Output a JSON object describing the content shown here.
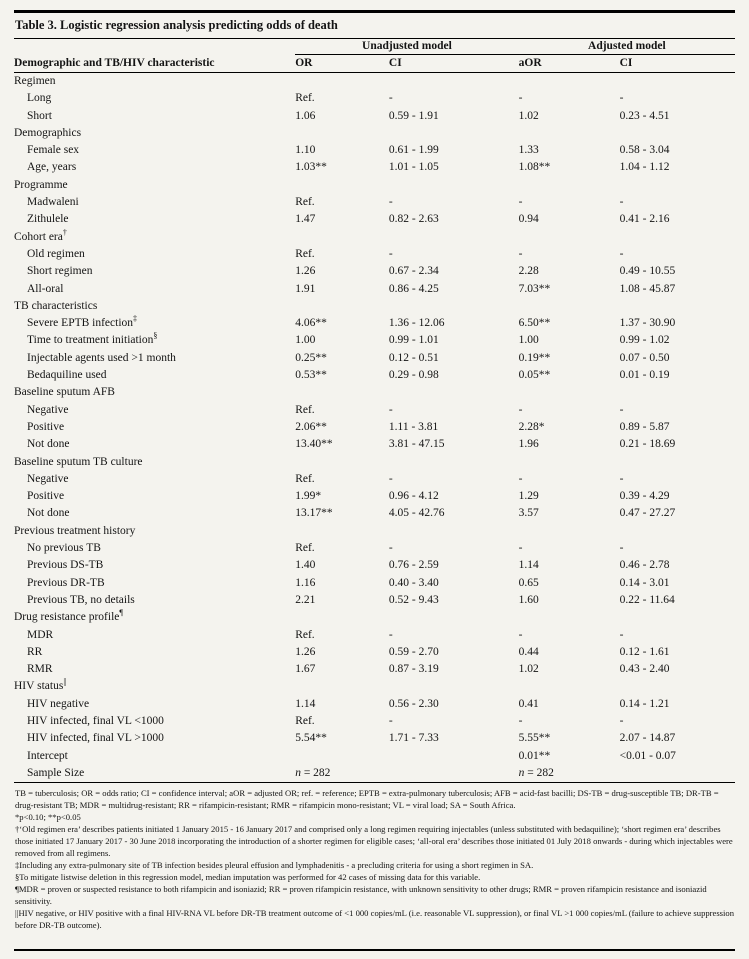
{
  "page": {
    "background": "#f4f3ee",
    "text_color": "#141414",
    "rule_color": "#000000"
  },
  "table": {
    "title": "Table 3. Logistic regression analysis predicting odds of death",
    "group_headers": {
      "unadjusted": "Unadjusted model",
      "adjusted": "Adjusted model"
    },
    "columns": {
      "characteristic": "Demographic and TB/HIV characteristic",
      "or": "OR",
      "ci1": "CI",
      "aor": "aOR",
      "ci2": "CI"
    },
    "rows": [
      {
        "label": "Regimen",
        "indent": 0,
        "or": "",
        "ci1": "",
        "aor": "",
        "ci2": ""
      },
      {
        "label": "Long",
        "indent": 1,
        "or": "Ref.",
        "ci1": "-",
        "aor": "-",
        "ci2": "-"
      },
      {
        "label": "Short",
        "indent": 1,
        "or": "1.06",
        "ci1": "0.59 - 1.91",
        "aor": "1.02",
        "ci2": "0.23 - 4.51"
      },
      {
        "label": "Demographics",
        "indent": 0,
        "or": "",
        "ci1": "",
        "aor": "",
        "ci2": ""
      },
      {
        "label": "Female sex",
        "indent": 1,
        "or": "1.10",
        "ci1": "0.61 - 1.99",
        "aor": "1.33",
        "ci2": "0.58 - 3.04"
      },
      {
        "label": "Age, years",
        "indent": 1,
        "or": "1.03**",
        "ci1": "1.01 - 1.05",
        "aor": "1.08**",
        "ci2": "1.04 - 1.12"
      },
      {
        "label": "Programme",
        "indent": 0,
        "or": "",
        "ci1": "",
        "aor": "",
        "ci2": ""
      },
      {
        "label": "Madwaleni",
        "indent": 1,
        "or": "Ref.",
        "ci1": "-",
        "aor": "-",
        "ci2": "-"
      },
      {
        "label": "Zithulele",
        "indent": 1,
        "or": "1.47",
        "ci1": "0.82 - 2.63",
        "aor": "0.94",
        "ci2": "0.41 - 2.16"
      },
      {
        "label": "Cohort era",
        "sup": "†",
        "indent": 0,
        "or": "",
        "ci1": "",
        "aor": "",
        "ci2": ""
      },
      {
        "label": "Old regimen",
        "indent": 1,
        "or": "Ref.",
        "ci1": "-",
        "aor": "-",
        "ci2": "-"
      },
      {
        "label": "Short regimen",
        "indent": 1,
        "or": "1.26",
        "ci1": "0.67 - 2.34",
        "aor": "2.28",
        "ci2": "0.49 - 10.55"
      },
      {
        "label": "All-oral",
        "indent": 1,
        "or": "1.91",
        "ci1": "0.86 - 4.25",
        "aor": "7.03**",
        "ci2": "1.08 - 45.87"
      },
      {
        "label": "TB characteristics",
        "indent": 0,
        "or": "",
        "ci1": "",
        "aor": "",
        "ci2": ""
      },
      {
        "label": "Severe EPTB infection",
        "sup": "‡",
        "indent": 1,
        "or": "4.06**",
        "ci1": "1.36 - 12.06",
        "aor": "6.50**",
        "ci2": "1.37 - 30.90"
      },
      {
        "label": "Time to treatment initiation",
        "sup": "§",
        "indent": 1,
        "or": "1.00",
        "ci1": "0.99 - 1.01",
        "aor": "1.00",
        "ci2": "0.99 - 1.02"
      },
      {
        "label": "Injectable agents used >1 month",
        "indent": 1,
        "or": "0.25**",
        "ci1": "0.12 - 0.51",
        "aor": "0.19**",
        "ci2": "0.07 - 0.50"
      },
      {
        "label": "Bedaquiline used",
        "indent": 1,
        "or": "0.53**",
        "ci1": "0.29 - 0.98",
        "aor": "0.05**",
        "ci2": "0.01 - 0.19"
      },
      {
        "label": "Baseline sputum AFB",
        "indent": 0,
        "or": "",
        "ci1": "",
        "aor": "",
        "ci2": ""
      },
      {
        "label": "Negative",
        "indent": 1,
        "or": "Ref.",
        "ci1": "-",
        "aor": "-",
        "ci2": "-"
      },
      {
        "label": "Positive",
        "indent": 1,
        "or": "2.06**",
        "ci1": "1.11 - 3.81",
        "aor": "2.28*",
        "ci2": "0.89 - 5.87"
      },
      {
        "label": "Not done",
        "indent": 1,
        "or": "13.40**",
        "ci1": "3.81 - 47.15",
        "aor": "1.96",
        "ci2": "0.21 - 18.69"
      },
      {
        "label": "Baseline sputum TB culture",
        "indent": 0,
        "or": "",
        "ci1": "",
        "aor": "",
        "ci2": ""
      },
      {
        "label": "Negative",
        "indent": 1,
        "or": "Ref.",
        "ci1": "-",
        "aor": "-",
        "ci2": "-"
      },
      {
        "label": "Positive",
        "indent": 1,
        "or": "1.99*",
        "ci1": "0.96 - 4.12",
        "aor": "1.29",
        "ci2": "0.39 - 4.29"
      },
      {
        "label": "Not done",
        "indent": 1,
        "or": "13.17**",
        "ci1": "4.05 - 42.76",
        "aor": "3.57",
        "ci2": "0.47 - 27.27"
      },
      {
        "label": "Previous treatment history",
        "indent": 0,
        "or": "",
        "ci1": "",
        "aor": "",
        "ci2": ""
      },
      {
        "label": "No previous TB",
        "indent": 1,
        "or": "Ref.",
        "ci1": "-",
        "aor": "-",
        "ci2": "-"
      },
      {
        "label": "Previous DS-TB",
        "indent": 1,
        "or": "1.40",
        "ci1": "0.76 - 2.59",
        "aor": "1.14",
        "ci2": "0.46 - 2.78"
      },
      {
        "label": "Previous DR-TB",
        "indent": 1,
        "or": "1.16",
        "ci1": "0.40 - 3.40",
        "aor": "0.65",
        "ci2": "0.14 - 3.01"
      },
      {
        "label": "Previous TB, no details",
        "indent": 1,
        "or": "2.21",
        "ci1": "0.52 - 9.43",
        "aor": "1.60",
        "ci2": "0.22 - 11.64"
      },
      {
        "label": "Drug resistance profile",
        "sup": "¶",
        "indent": 0,
        "or": "",
        "ci1": "",
        "aor": "",
        "ci2": ""
      },
      {
        "label": "MDR",
        "indent": 1,
        "or": "Ref.",
        "ci1": "-",
        "aor": "-",
        "ci2": "-"
      },
      {
        "label": "RR",
        "indent": 1,
        "or": "1.26",
        "ci1": "0.59 - 2.70",
        "aor": "0.44",
        "ci2": "0.12 - 1.61"
      },
      {
        "label": "RMR",
        "indent": 1,
        "or": "1.67",
        "ci1": "0.87 - 3.19",
        "aor": "1.02",
        "ci2": "0.43 - 2.40"
      },
      {
        "label": "HIV status",
        "sup": "||",
        "indent": 0,
        "or": "",
        "ci1": "",
        "aor": "",
        "ci2": ""
      },
      {
        "label": "HIV negative",
        "indent": 1,
        "or": "1.14",
        "ci1": "0.56 - 2.30",
        "aor": "0.41",
        "ci2": "0.14 - 1.21"
      },
      {
        "label": "HIV infected, final VL <1000",
        "indent": 1,
        "or": "Ref.",
        "ci1": "-",
        "aor": "-",
        "ci2": "-"
      },
      {
        "label": "HIV infected, final VL >1000",
        "indent": 1,
        "or": "5.54**",
        "ci1": "1.71 - 7.33",
        "aor": "5.55**",
        "ci2": "2.07 - 14.87"
      },
      {
        "label": "Intercept",
        "indent": 1,
        "or": "",
        "ci1": "",
        "aor": "0.01**",
        "ci2": "<0.01 - 0.07"
      },
      {
        "label": "Sample Size",
        "indent": 1,
        "or": "n = 282",
        "ci1": "",
        "aor": "n = 282",
        "ci2": ""
      }
    ],
    "footnotes": [
      "TB = tuberculosis; OR = odds ratio; CI = confidence interval; aOR = adjusted OR; ref. = reference; EPTB = extra-pulmonary tuberculosis; AFB = acid-fast bacilli; DS-TB = drug-susceptible TB; DR-TB = drug-resistant TB; MDR = multidrug-resistant; RR = rifampicin-resistant; RMR = rifampicin mono-resistant; VL = viral load; SA = South Africa.",
      "*p<0.10; **p<0.05",
      "†‘Old regimen era’ describes patients initiated 1 January 2015 - 16 January 2017 and comprised only a long regimen requiring injectables (unless substituted with bedaquiline); ‘short regimen era’ describes those initiated 17 January 2017 - 30 June 2018 incorporating the introduction of a shorter regimen for eligible cases; ‘all-oral era’ describes those initiated 01 July 2018 onwards - during which injectables were removed from all regimens.",
      "‡Including any extra-pulmonary site of TB infection besides pleural effusion and lymphadenitis - a precluding criteria for using a short regimen in SA.",
      "§To mitigate listwise deletion in this regression model, median imputation was performed for 42 cases of missing data for this variable.",
      "¶MDR = proven or suspected resistance to both rifampicin and isoniazid; RR = proven rifampicin resistance, with unknown sensitivity to other drugs; RMR = proven rifampicin resistance and isoniazid sensitivity.",
      "||HIV negative, or HIV positive with a final HIV-RNA VL before DR-TB treatment outcome of <1 000 copies/mL (i.e. reasonable VL suppression), or final VL >1 000 copies/mL (failure to achieve suppression before DR-TB outcome)."
    ]
  }
}
